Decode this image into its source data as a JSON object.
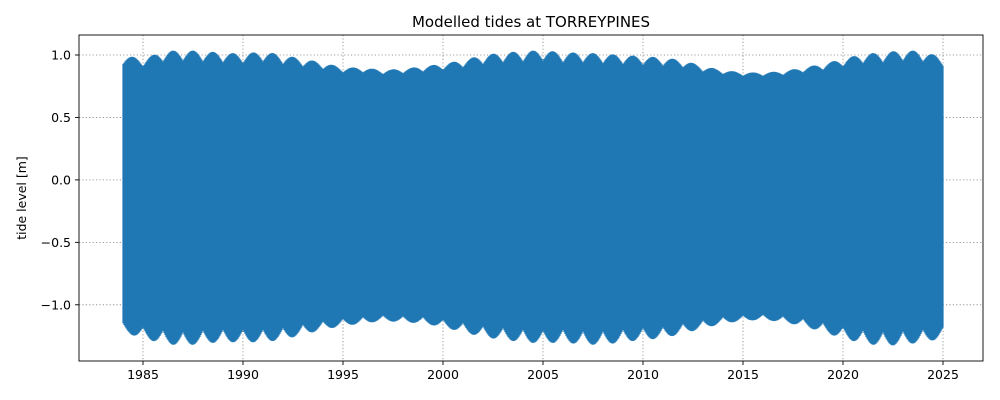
{
  "chart_data": {
    "type": "line",
    "title": "Modelled tides at TORREYPINES",
    "xlabel": "",
    "ylabel": "tide level [m]",
    "xlim": [
      1981.8,
      2027.0
    ],
    "ylim": [
      -1.45,
      1.16
    ],
    "x_ticks": [
      1985,
      1990,
      1995,
      2000,
      2005,
      2010,
      2015,
      2020,
      2025
    ],
    "x_tick_labels": [
      "1985",
      "1990",
      "1995",
      "2000",
      "2005",
      "2010",
      "2015",
      "2020",
      "2025"
    ],
    "y_ticks": [
      -1.0,
      -0.5,
      0.0,
      0.5,
      1.0
    ],
    "y_tick_labels": [
      "−1.0",
      "−0.5",
      "0.0",
      "0.5",
      "1.0"
    ],
    "grid": true,
    "series": [
      {
        "color": "#1f77b4",
        "x_range": [
          1984.0,
          2025.0
        ],
        "envelope_x": [
          1984,
          1985,
          1986,
          1987,
          1988,
          1989,
          1990,
          1991,
          1992,
          1993,
          1994,
          1995,
          1996,
          1997,
          1998,
          1999,
          2000,
          2001,
          2002,
          2003,
          2004,
          2005,
          2006,
          2007,
          2008,
          2009,
          2010,
          2011,
          2012,
          2013,
          2014,
          2015,
          2016,
          2017,
          2018,
          2019,
          2020,
          2021,
          2022,
          2023,
          2024,
          2025
        ],
        "envelope_max": [
          1.0,
          0.97,
          1.03,
          1.04,
          1.03,
          1.02,
          1.01,
          1.03,
          1.0,
          0.97,
          0.94,
          0.9,
          0.9,
          0.88,
          0.89,
          0.91,
          0.93,
          0.96,
          1.0,
          1.02,
          1.03,
          1.04,
          1.02,
          1.02,
          1.01,
          1.0,
          0.99,
          0.98,
          0.96,
          0.91,
          0.88,
          0.86,
          0.86,
          0.87,
          0.9,
          0.93,
          0.97,
          1.01,
          1.02,
          1.04,
          1.03,
          0.98
        ],
        "envelope_min": [
          -1.22,
          -1.27,
          -1.31,
          -1.33,
          -1.31,
          -1.3,
          -1.3,
          -1.3,
          -1.28,
          -1.24,
          -1.2,
          -1.17,
          -1.15,
          -1.13,
          -1.14,
          -1.15,
          -1.18,
          -1.22,
          -1.26,
          -1.28,
          -1.3,
          -1.31,
          -1.3,
          -1.32,
          -1.32,
          -1.3,
          -1.28,
          -1.27,
          -1.23,
          -1.19,
          -1.15,
          -1.13,
          -1.12,
          -1.14,
          -1.17,
          -1.22,
          -1.27,
          -1.31,
          -1.33,
          -1.32,
          -1.3,
          -1.27
        ]
      }
    ]
  }
}
